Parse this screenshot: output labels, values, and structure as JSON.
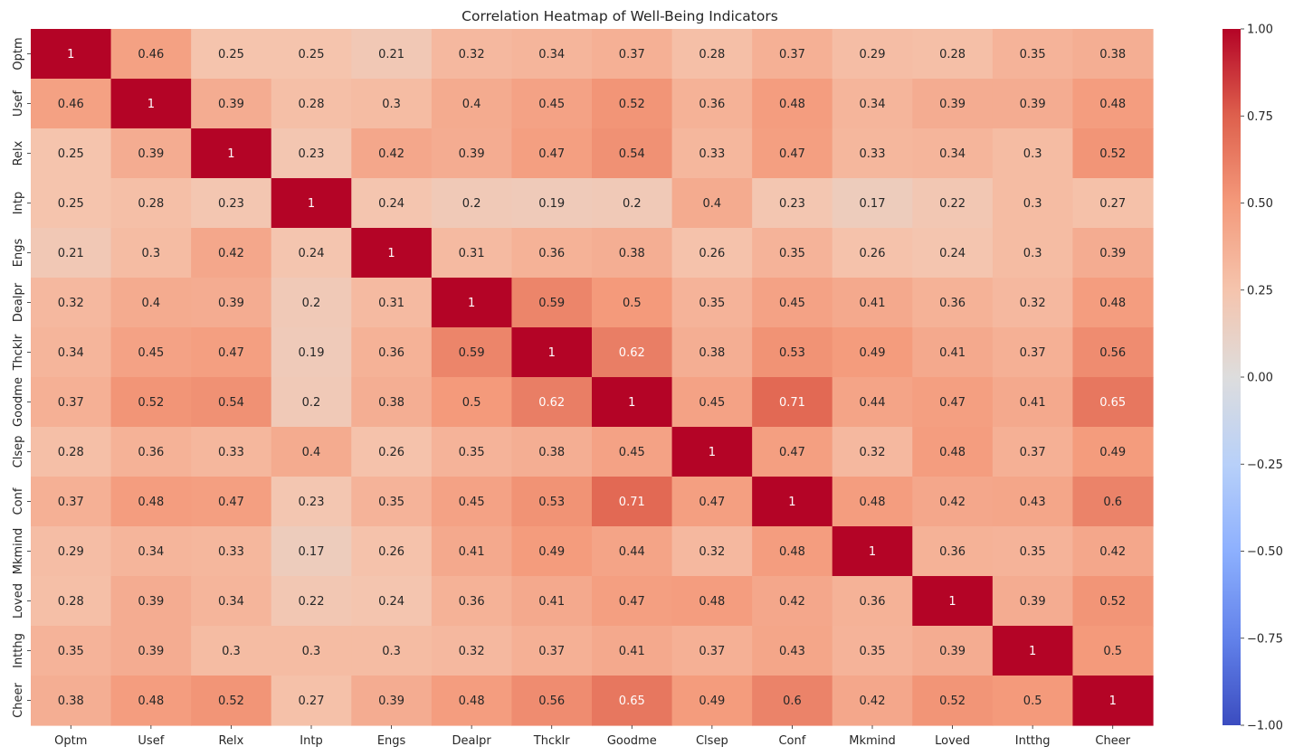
{
  "chart_data": {
    "type": "heatmap",
    "title": "Correlation Heatmap of Well-Being Indicators",
    "xlabel": "",
    "ylabel": "",
    "categories": [
      "Optm",
      "Usef",
      "Relx",
      "Intp",
      "Engs",
      "Dealpr",
      "Thcklr",
      "Goodme",
      "Clsep",
      "Conf",
      "Mkmind",
      "Loved",
      "Intthg",
      "Cheer"
    ],
    "values": [
      [
        1,
        0.46,
        0.25,
        0.25,
        0.21,
        0.32,
        0.34,
        0.37,
        0.28,
        0.37,
        0.29,
        0.28,
        0.35,
        0.38
      ],
      [
        0.46,
        1,
        0.39,
        0.28,
        0.3,
        0.4,
        0.45,
        0.52,
        0.36,
        0.48,
        0.34,
        0.39,
        0.39,
        0.48
      ],
      [
        0.25,
        0.39,
        1,
        0.23,
        0.42,
        0.39,
        0.47,
        0.54,
        0.33,
        0.47,
        0.33,
        0.34,
        0.3,
        0.52
      ],
      [
        0.25,
        0.28,
        0.23,
        1,
        0.24,
        0.2,
        0.19,
        0.2,
        0.4,
        0.23,
        0.17,
        0.22,
        0.3,
        0.27
      ],
      [
        0.21,
        0.3,
        0.42,
        0.24,
        1,
        0.31,
        0.36,
        0.38,
        0.26,
        0.35,
        0.26,
        0.24,
        0.3,
        0.39
      ],
      [
        0.32,
        0.4,
        0.39,
        0.2,
        0.31,
        1,
        0.59,
        0.5,
        0.35,
        0.45,
        0.41,
        0.36,
        0.32,
        0.48
      ],
      [
        0.34,
        0.45,
        0.47,
        0.19,
        0.36,
        0.59,
        1,
        0.62,
        0.38,
        0.53,
        0.49,
        0.41,
        0.37,
        0.56
      ],
      [
        0.37,
        0.52,
        0.54,
        0.2,
        0.38,
        0.5,
        0.62,
        1,
        0.45,
        0.71,
        0.44,
        0.47,
        0.41,
        0.65
      ],
      [
        0.28,
        0.36,
        0.33,
        0.4,
        0.26,
        0.35,
        0.38,
        0.45,
        1,
        0.47,
        0.32,
        0.48,
        0.37,
        0.49
      ],
      [
        0.37,
        0.48,
        0.47,
        0.23,
        0.35,
        0.45,
        0.53,
        0.71,
        0.47,
        1,
        0.48,
        0.42,
        0.43,
        0.6
      ],
      [
        0.29,
        0.34,
        0.33,
        0.17,
        0.26,
        0.41,
        0.49,
        0.44,
        0.32,
        0.48,
        1,
        0.36,
        0.35,
        0.42
      ],
      [
        0.28,
        0.39,
        0.34,
        0.22,
        0.24,
        0.36,
        0.41,
        0.47,
        0.48,
        0.42,
        0.36,
        1,
        0.39,
        0.52
      ],
      [
        0.35,
        0.39,
        0.3,
        0.3,
        0.3,
        0.32,
        0.37,
        0.41,
        0.37,
        0.43,
        0.35,
        0.39,
        1,
        0.5
      ],
      [
        0.38,
        0.48,
        0.52,
        0.27,
        0.39,
        0.48,
        0.56,
        0.65,
        0.49,
        0.6,
        0.42,
        0.52,
        0.5,
        1
      ]
    ],
    "colormap": "coolwarm",
    "vmin": -1,
    "vmax": 1,
    "colorbar_ticks": [
      "1.00",
      "0.75",
      "0.50",
      "0.25",
      "0.00",
      "−0.25",
      "−0.50",
      "−0.75",
      "−1.00"
    ],
    "colorbar_tick_values": [
      1,
      0.75,
      0.5,
      0.25,
      0,
      -0.25,
      -0.5,
      -0.75,
      -1
    ],
    "grid": false,
    "legend": "colorbar-right",
    "colors": {
      "cold": "#3b4cc0",
      "neutral": "#dddddd",
      "hot": "#b40426",
      "text_light": "#ffffff",
      "text_dark": "#262626"
    }
  }
}
